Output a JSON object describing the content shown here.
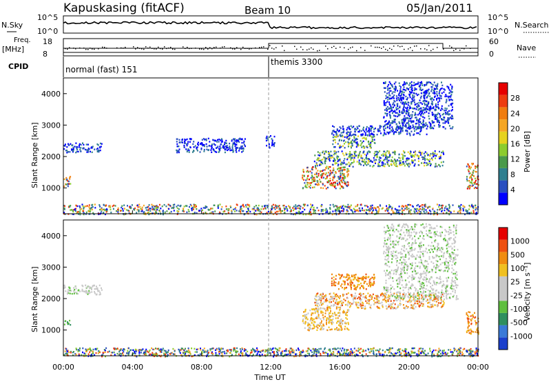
{
  "header": {
    "station": "Kapuskasing (fitACF)",
    "beam": "Beam 10",
    "date": "05/Jan/2011"
  },
  "top_panels": {
    "nsky_label": "N.Sky",
    "nsky_ticks": [
      "10^5",
      "10^0"
    ],
    "nsearch_label": "N.Search",
    "nsearch_ticks": [
      "10^5",
      "10^0"
    ],
    "freq_label": "Freq.",
    "freq_unit": "[MHz]",
    "freq_ticks": [
      "18",
      "8"
    ],
    "nave_label": "Nave",
    "nave_ticks": [
      "60",
      "0"
    ],
    "cpid_label": "CPID",
    "cpid_modes": [
      {
        "name": "normal (fast) 151",
        "start_hour": 0
      },
      {
        "name": "themis 3300",
        "start_hour": 12
      }
    ]
  },
  "chart_data": [
    {
      "type": "heatmap",
      "name": "power",
      "ylabel": "Slant Range [km]",
      "xlabel": "Time UT",
      "xlim": [
        0,
        24
      ],
      "ylim": [
        180,
        4500
      ],
      "x_ticks": [
        "00:00",
        "04:00",
        "08:00",
        "12:00",
        "16:00",
        "20:00",
        "00:00"
      ],
      "y_ticks": [
        1000,
        2000,
        3000,
        4000
      ],
      "colorbar": {
        "label": "Power [dB]",
        "ticks": [
          "4",
          "8",
          "12",
          "16",
          "20",
          "24",
          "28"
        ],
        "colors": [
          "#0000ff",
          "#2a4fc0",
          "#2f7f8f",
          "#4a9a4a",
          "#8ccc2e",
          "#e6d21e",
          "#f5a623",
          "#f07d10",
          "#ee3d10",
          "#e60000"
        ]
      },
      "echo_regions": [
        {
          "t": [
            0.0,
            0.4
          ],
          "r": [
            1050,
            1400
          ],
          "level": "high"
        },
        {
          "t": [
            0.0,
            2.2
          ],
          "r": [
            2150,
            2450
          ],
          "level": "low"
        },
        {
          "t": [
            6.5,
            10.5
          ],
          "r": [
            2150,
            2600
          ],
          "level": "low"
        },
        {
          "t": [
            11.7,
            12.2
          ],
          "r": [
            2300,
            2700
          ],
          "level": "low"
        },
        {
          "t": [
            13.8,
            16.5
          ],
          "r": [
            1000,
            1700
          ],
          "level": "high"
        },
        {
          "t": [
            14.5,
            22.0
          ],
          "r": [
            1700,
            2200
          ],
          "level": "mid"
        },
        {
          "t": [
            15.5,
            18.0
          ],
          "r": [
            2300,
            2700
          ],
          "level": "mid"
        },
        {
          "t": [
            15.5,
            21.0
          ],
          "r": [
            2700,
            3000
          ],
          "level": "low"
        },
        {
          "t": [
            18.5,
            22.5
          ],
          "r": [
            2900,
            4400
          ],
          "level": "low"
        },
        {
          "t": [
            23.3,
            24.0
          ],
          "r": [
            1000,
            1800
          ],
          "level": "high"
        },
        {
          "t": [
            0.0,
            24.0
          ],
          "r": [
            180,
            500
          ],
          "level": "mixed"
        }
      ]
    },
    {
      "type": "heatmap",
      "name": "velocity",
      "ylabel": "Slant Range [km]",
      "xlabel": "Time UT",
      "xlim": [
        0,
        24
      ],
      "ylim": [
        180,
        4500
      ],
      "x_ticks": [
        "00:00",
        "04:00",
        "08:00",
        "12:00",
        "16:00",
        "20:00",
        "00:00"
      ],
      "y_ticks": [
        1000,
        2000,
        3000,
        4000
      ],
      "colorbar": {
        "label": "Velocity [m s⁻¹]",
        "ticks": [
          "1000",
          "500",
          "100",
          "25",
          "-25",
          "-100",
          "-500",
          "-1000"
        ],
        "colors": [
          "#1a3fcc",
          "#3a7ad8",
          "#2f8f5f",
          "#5fbf3f",
          "#c8c8c8",
          "#c8c8c8",
          "#f0c020",
          "#f08c10",
          "#ee5010",
          "#e60000"
        ]
      },
      "echo_regions": [
        {
          "t": [
            0.0,
            0.4
          ],
          "r": [
            1150,
            1350
          ],
          "level": "green"
        },
        {
          "t": [
            0.0,
            2.2
          ],
          "r": [
            2150,
            2450
          ],
          "level": "gray"
        },
        {
          "t": [
            13.8,
            16.5
          ],
          "r": [
            1000,
            1700
          ],
          "level": "yellow-orange"
        },
        {
          "t": [
            14.5,
            22.0
          ],
          "r": [
            1700,
            2200
          ],
          "level": "orange-gray"
        },
        {
          "t": [
            15.5,
            18.0
          ],
          "r": [
            2300,
            2800
          ],
          "level": "orange"
        },
        {
          "t": [
            18.5,
            22.8
          ],
          "r": [
            2000,
            4400
          ],
          "level": "gray"
        },
        {
          "t": [
            23.3,
            24.0
          ],
          "r": [
            900,
            1600
          ],
          "level": "orange"
        },
        {
          "t": [
            0.0,
            24.0
          ],
          "r": [
            180,
            450
          ],
          "level": "mixed"
        }
      ]
    }
  ]
}
